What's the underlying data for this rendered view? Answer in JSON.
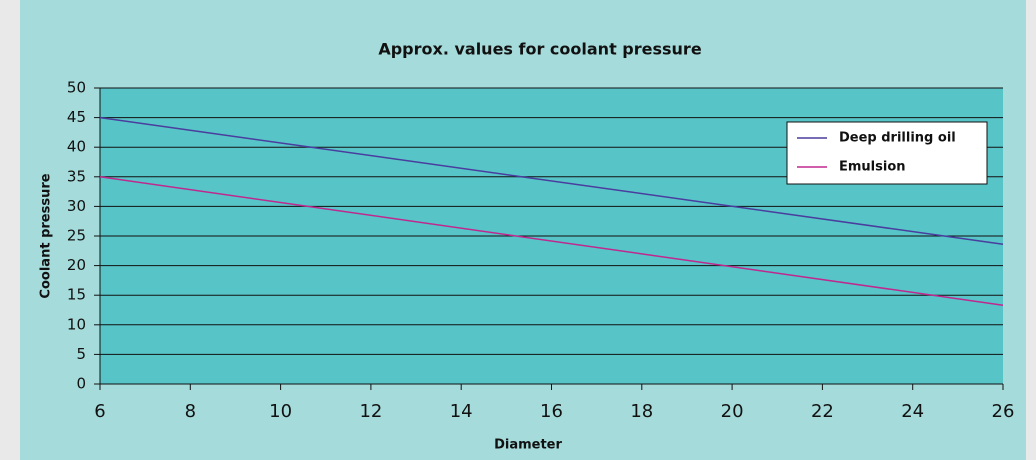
{
  "chart_data": {
    "type": "line",
    "title": "Approx. values for coolant pressure",
    "x_label": "Diameter",
    "y_label": "Coolant pressure",
    "x": [
      6,
      26
    ],
    "series": [
      {
        "name": "Deep drilling oil",
        "color": "#4a3d9e",
        "values": [
          45,
          23.6
        ]
      },
      {
        "name": "Emulsion",
        "color": "#c0288f",
        "values": [
          35,
          13.3
        ]
      }
    ],
    "xlim": [
      6,
      26
    ],
    "xticks": [
      6,
      8,
      10,
      12,
      14,
      16,
      18,
      20,
      22,
      24,
      26
    ],
    "ylim": [
      0,
      50
    ],
    "yticks": [
      0,
      5,
      10,
      15,
      20,
      25,
      30,
      35,
      40,
      45,
      50
    ],
    "grid": true,
    "legend": "upper right"
  }
}
